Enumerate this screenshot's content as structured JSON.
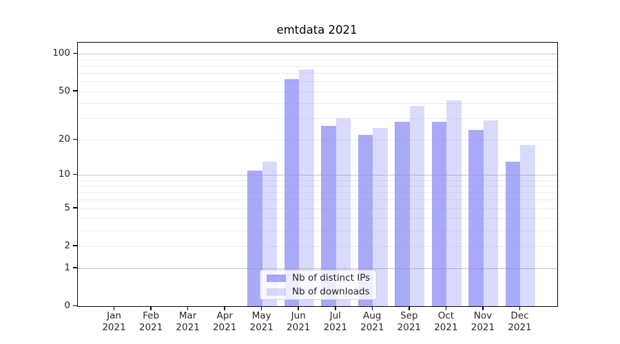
{
  "title": "emtdata 2021",
  "chart_data": {
    "type": "bar",
    "title": "emtdata 2021",
    "categories": [
      "Jan 2021",
      "Feb 2021",
      "Mar 2021",
      "Apr 2021",
      "May 2021",
      "Jun 2021",
      "Jul 2021",
      "Aug 2021",
      "Sep 2021",
      "Oct 2021",
      "Nov 2021",
      "Dec 2021"
    ],
    "x_tick_month": [
      "Jan",
      "Feb",
      "Mar",
      "Apr",
      "May",
      "Jun",
      "Jul",
      "Aug",
      "Sep",
      "Oct",
      "Nov",
      "Dec"
    ],
    "x_tick_year": "2021",
    "series": [
      {
        "name": "Nb of distinct IPs",
        "color": "rgba(134,136,244,0.72)",
        "values": [
          0,
          0,
          0,
          0,
          11,
          63,
          26,
          22,
          28,
          28,
          24,
          13
        ]
      },
      {
        "name": "Nb of downloads",
        "color": "rgba(134,136,244,0.30)",
        "values": [
          0,
          0,
          0,
          0,
          13,
          75,
          30,
          25,
          38,
          42,
          29,
          18
        ]
      }
    ],
    "yscale": "symlog (position ∝ log(1+y))",
    "ylim": [
      0,
      123
    ],
    "y_tick_labels": [
      0,
      1,
      2,
      5,
      10,
      20,
      50,
      100
    ],
    "y_major_gridlines": [
      1,
      10,
      100
    ],
    "y_minor_gridlines": [
      2,
      3,
      4,
      5,
      6,
      7,
      8,
      9,
      20,
      30,
      40,
      50,
      60,
      70,
      80,
      90
    ],
    "grid": true,
    "legend_position": "lower center (inside plot)",
    "colors": {
      "major_grid": "#c3c3c3",
      "minor_grid": "#ececec",
      "axis": "#000000",
      "tick_text": "#262626",
      "title_text": "#000000",
      "background": "#ffffff"
    }
  }
}
